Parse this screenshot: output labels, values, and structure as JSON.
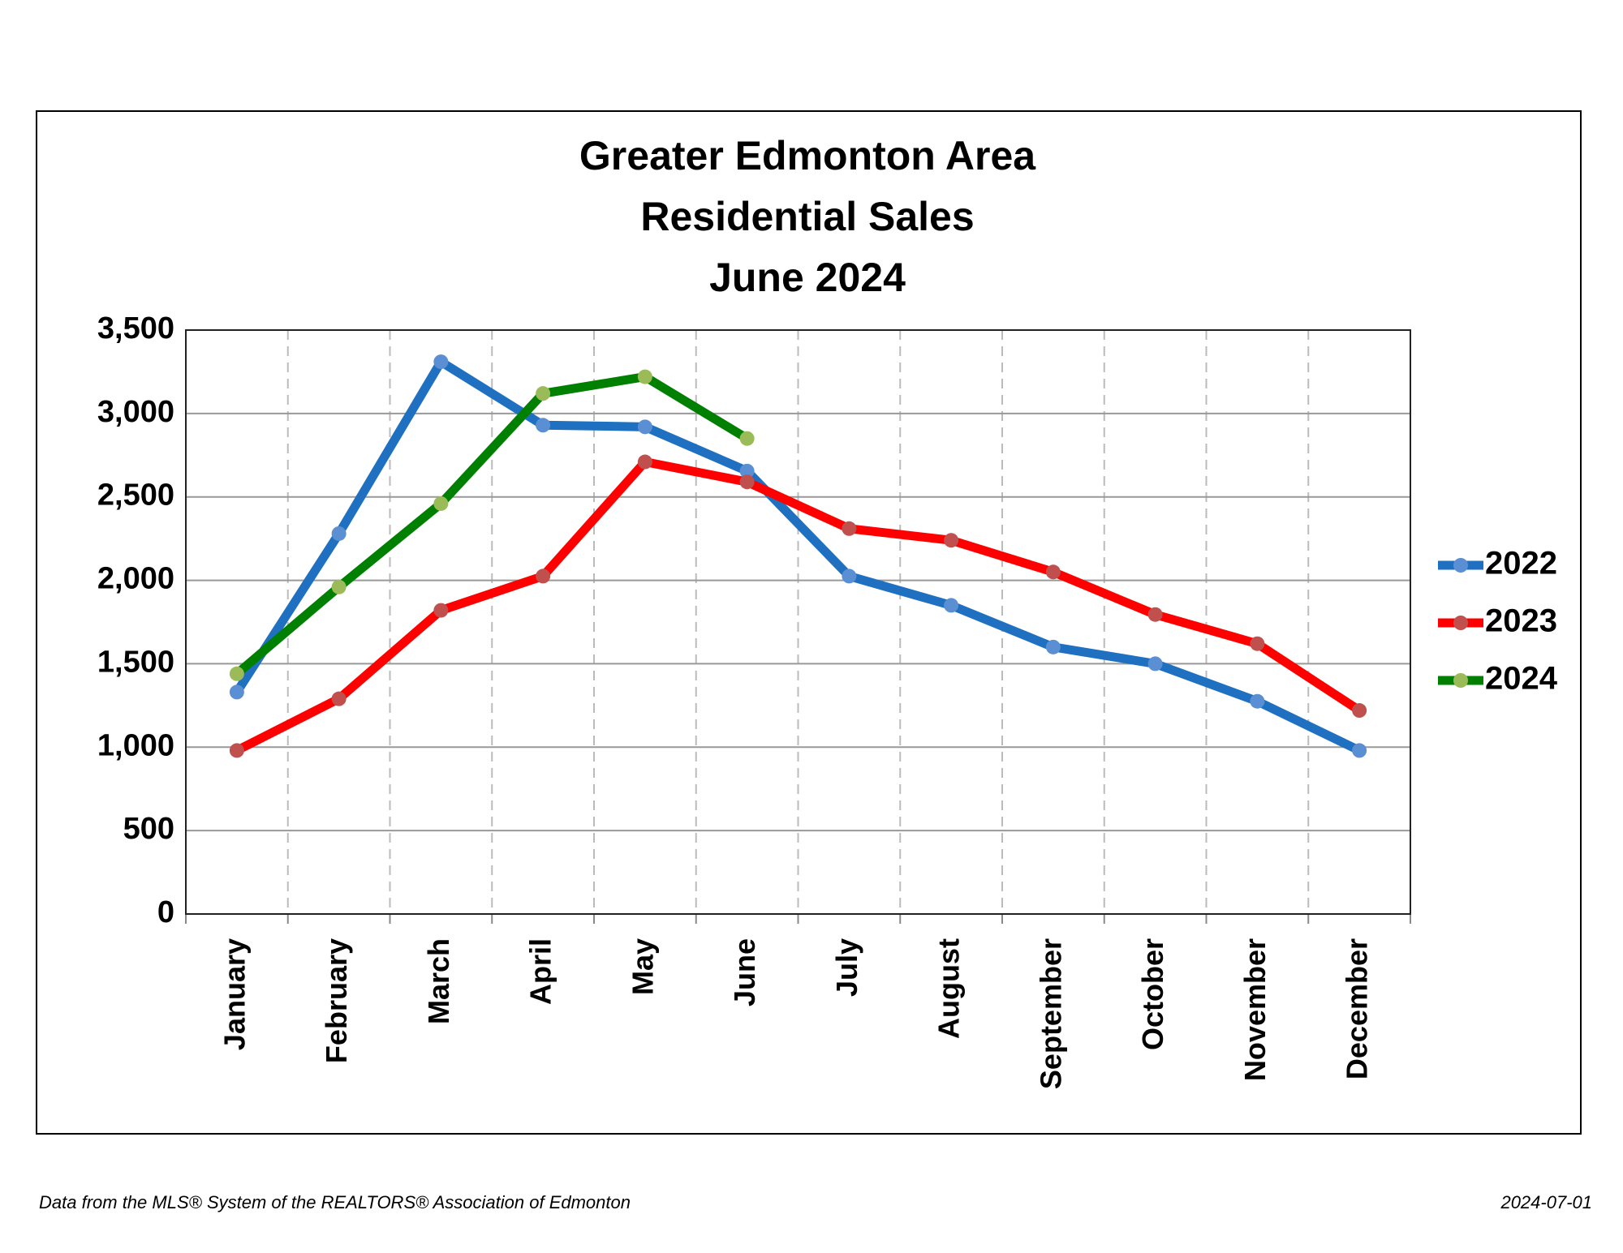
{
  "chart_data": {
    "type": "line",
    "title": [
      "Greater Edmonton Area",
      "Residential Sales",
      "June 2024"
    ],
    "categories": [
      "January",
      "February",
      "March",
      "April",
      "May",
      "June",
      "July",
      "August",
      "September",
      "October",
      "November",
      "December"
    ],
    "series": [
      {
        "name": "2022",
        "color": "#1f70c1",
        "marker_color": "#5b8fd3",
        "values": [
          1330,
          2280,
          3310,
          2930,
          2920,
          2655,
          2025,
          1850,
          1600,
          1500,
          1275,
          980
        ]
      },
      {
        "name": "2023",
        "color": "#ff0000",
        "marker_color": "#c0504d",
        "values": [
          980,
          1290,
          1820,
          2025,
          2710,
          2590,
          2310,
          2240,
          2050,
          1795,
          1620,
          1220
        ]
      },
      {
        "name": "2024",
        "color": "#008000",
        "marker_color": "#9bbb59",
        "values": [
          1440,
          1960,
          2460,
          3120,
          3220,
          2850,
          null,
          null,
          null,
          null,
          null,
          null
        ]
      }
    ],
    "ylim": [
      0,
      3500
    ],
    "yticks": [
      0,
      500,
      {
        "value": 1000,
        "label": "1,000"
      },
      {
        "value": 1500,
        "label": "1,500"
      },
      {
        "value": 2000,
        "label": "2,000"
      },
      {
        "value": 2500,
        "label": "2,500"
      },
      {
        "value": 3000,
        "label": "3,000"
      },
      {
        "value": 3500,
        "label": "3,500"
      }
    ],
    "grid": true,
    "legend": "right",
    "source": "Data from the MLS® System of the REALTORS® Association of Edmonton",
    "date": "2024-07-01"
  }
}
